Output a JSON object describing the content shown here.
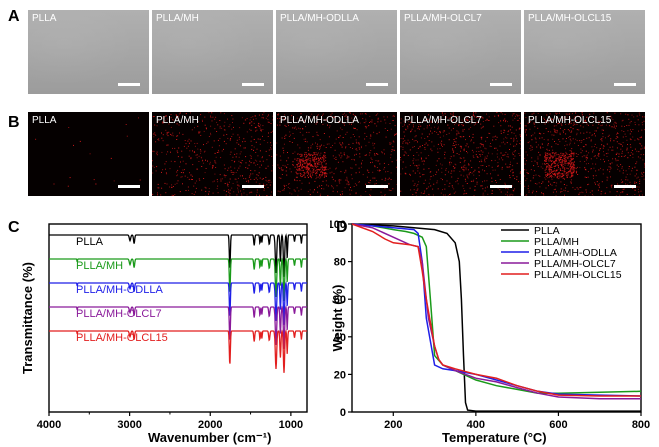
{
  "panels": {
    "a": "A",
    "b": "B",
    "c": "C",
    "d": "D"
  },
  "sem_images": {
    "labels": [
      "PLLA",
      "PLLA/MH",
      "PLLA/MH-ODLLA",
      "PLLA/MH-OLCL7",
      "PLLA/MH-OLCL15"
    ]
  },
  "mapping_images": {
    "labels": [
      "PLLA",
      "PLLA/MH",
      "PLLA/MH-ODLLA",
      "PLLA/MH-OLCL7",
      "PLLA/MH-OLCL15"
    ],
    "dot_color": "#e0191b"
  },
  "chart_data": [
    {
      "type": "line",
      "panel": "C",
      "xlabel": "Wavenumber (cm⁻¹)",
      "ylabel": "Transmittance (%)",
      "xlim": [
        4000,
        800
      ],
      "x_ticks": [
        4000,
        3000,
        2000,
        1000
      ],
      "x_tick_labels": [
        "4000",
        "3000",
        "2000",
        "1000"
      ],
      "y_ticks_labeled": false,
      "series": [
        {
          "name": "PLLA",
          "color": "#000000",
          "offset": 0
        },
        {
          "name": "PLLA/MH",
          "color": "#1a9a1a",
          "offset": 1
        },
        {
          "name": "PLLA/MH-ODLLA",
          "color": "#1f1fe8",
          "offset": 2
        },
        {
          "name": "PLLA/MH-OLCL7",
          "color": "#8a1a9a",
          "offset": 3
        },
        {
          "name": "PLLA/MH-OLCL15",
          "color": "#e21f1f",
          "offset": 4
        }
      ]
    },
    {
      "type": "line",
      "panel": "D",
      "xlabel": "Temperature (°C)",
      "ylabel": "Weight (%)",
      "xlim": [
        100,
        800
      ],
      "ylim": [
        0,
        100
      ],
      "x_ticks": [
        200,
        400,
        600,
        800
      ],
      "y_ticks": [
        0,
        20,
        40,
        60,
        80,
        100
      ],
      "legend": "top-right",
      "series": [
        {
          "name": "PLLA",
          "color": "#000000",
          "x": [
            100,
            200,
            300,
            330,
            350,
            360,
            365,
            370,
            375,
            380,
            400,
            500,
            600,
            700,
            800
          ],
          "y": [
            100,
            99,
            97,
            95,
            90,
            80,
            60,
            30,
            5,
            1,
            0.5,
            0.5,
            0.5,
            0.5,
            0.5
          ]
        },
        {
          "name": "PLLA/MH",
          "color": "#1a9a1a",
          "x": [
            100,
            150,
            200,
            230,
            250,
            270,
            280,
            290,
            300,
            320,
            350,
            400,
            450,
            500,
            550,
            600,
            700,
            800
          ],
          "y": [
            100,
            99,
            97,
            96,
            95,
            93,
            88,
            60,
            30,
            25,
            22,
            17,
            14,
            12,
            10,
            10,
            10.5,
            11
          ]
        },
        {
          "name": "PLLA/MH-ODLLA",
          "color": "#1f1fe8",
          "x": [
            100,
            150,
            200,
            250,
            260,
            270,
            280,
            300,
            320,
            350,
            400,
            450,
            500,
            550,
            600,
            700,
            800
          ],
          "y": [
            100,
            99,
            98,
            97,
            95,
            80,
            50,
            25,
            23,
            22,
            20,
            17,
            14,
            11,
            9.5,
            9,
            8.5
          ]
        },
        {
          "name": "PLLA/MH-OLCL7",
          "color": "#8a1a9a",
          "x": [
            100,
            150,
            200,
            240,
            260,
            270,
            285,
            300,
            310,
            320,
            350,
            400,
            450,
            500,
            550,
            600,
            700,
            800
          ],
          "y": [
            100,
            98,
            93,
            89,
            88,
            80,
            50,
            35,
            28,
            25,
            22,
            18,
            16,
            13,
            10,
            8,
            7,
            7
          ]
        },
        {
          "name": "PLLA/MH-OLCL15",
          "color": "#e21f1f",
          "x": [
            100,
            150,
            180,
            200,
            240,
            260,
            270,
            280,
            300,
            310,
            320,
            350,
            400,
            450,
            500,
            550,
            600,
            700,
            800
          ],
          "y": [
            100,
            96,
            92,
            90,
            89,
            88,
            75,
            60,
            35,
            28,
            25,
            23,
            20,
            18,
            14,
            11,
            9,
            8.5,
            8.5
          ]
        }
      ]
    }
  ]
}
